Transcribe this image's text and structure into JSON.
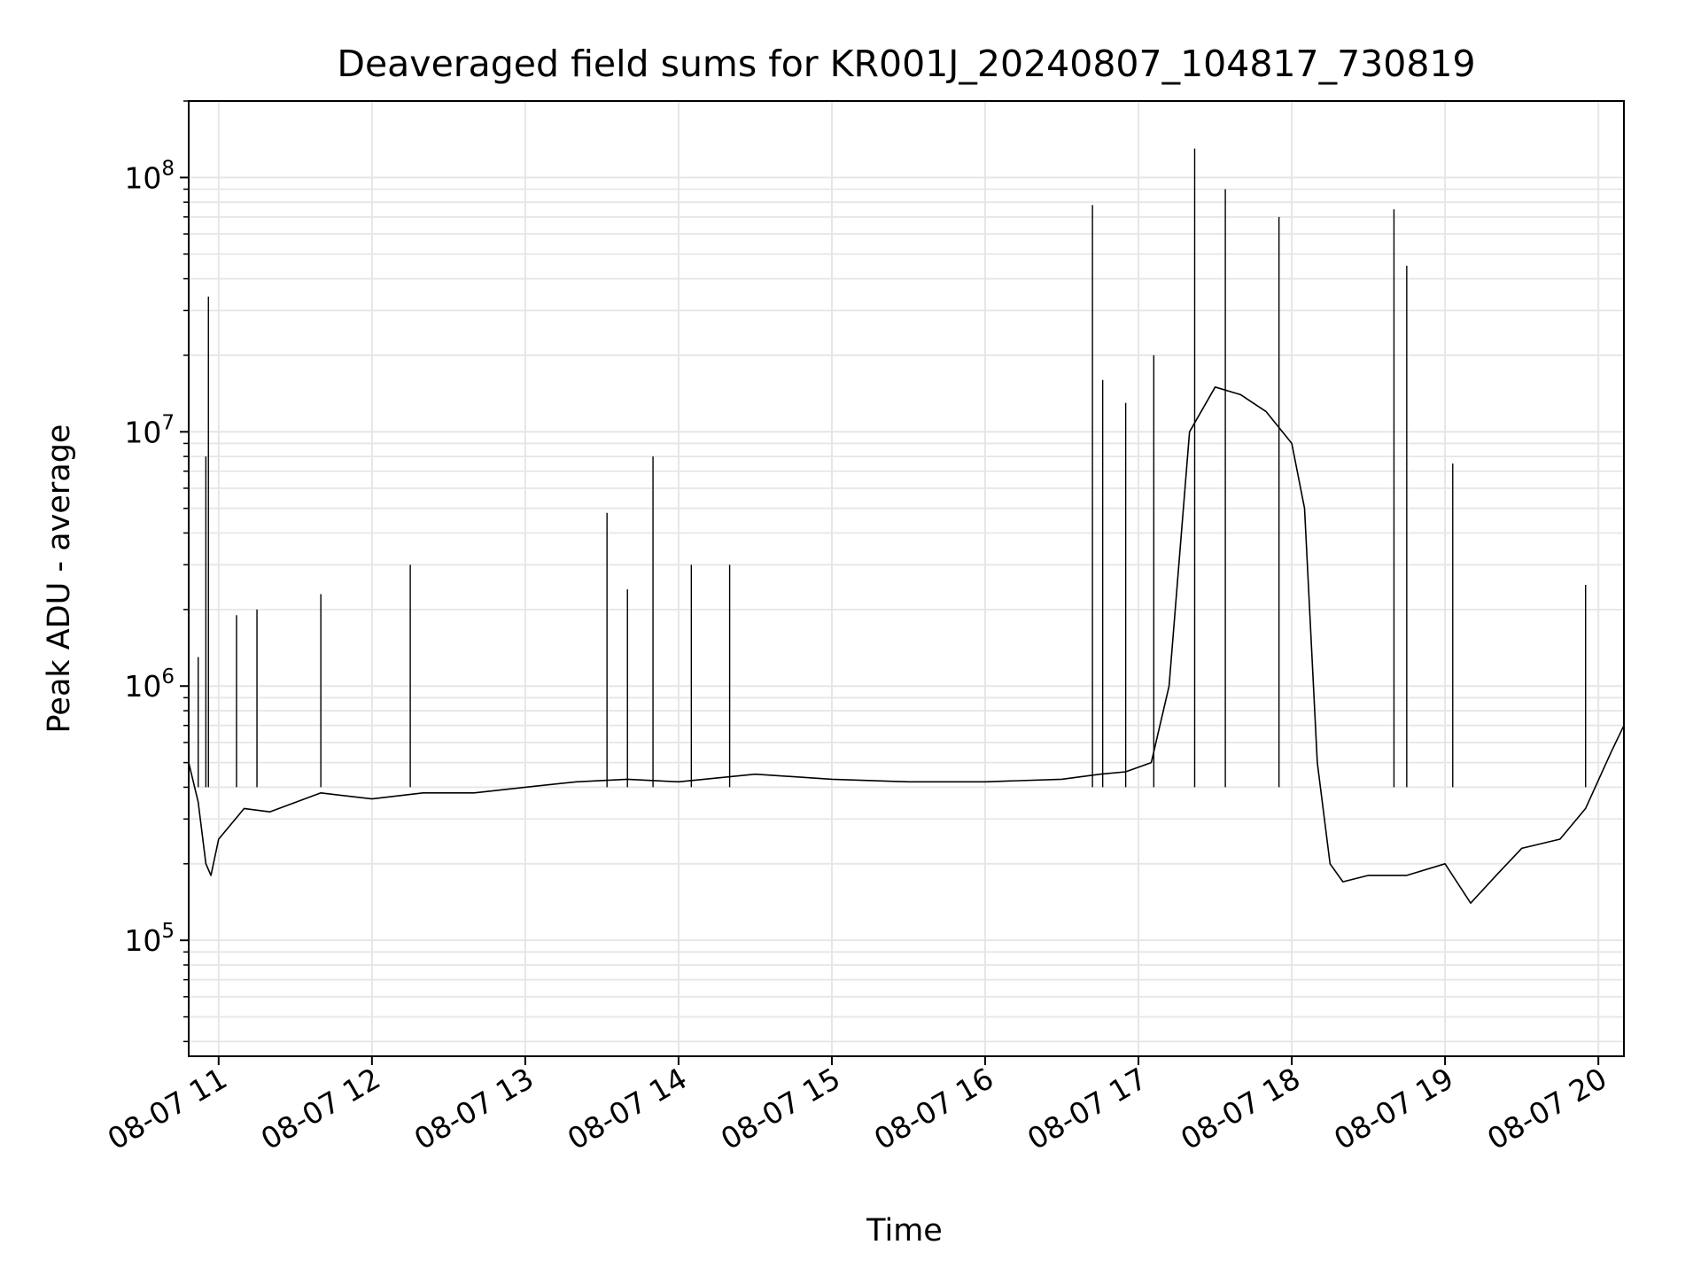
{
  "chart_data": {
    "type": "line",
    "title": "Deaveraged field sums for KR001J_20240807_104817_730819",
    "xlabel": "Time",
    "ylabel": "Peak ADU - average",
    "x_scale": "time",
    "y_scale": "log",
    "xlim": [
      "2024-08-07T10:48:17",
      "2024-08-07T20:10:00"
    ],
    "ylim": [
      35000,
      200000000
    ],
    "x_tick_labels": [
      "08-07 11",
      "08-07 12",
      "08-07 13",
      "08-07 14",
      "08-07 15",
      "08-07 16",
      "08-07 17",
      "08-07 18",
      "08-07 19",
      "08-07 20"
    ],
    "x_tick_times": [
      "2024-08-07T11:00:00",
      "2024-08-07T12:00:00",
      "2024-08-07T13:00:00",
      "2024-08-07T14:00:00",
      "2024-08-07T15:00:00",
      "2024-08-07T16:00:00",
      "2024-08-07T17:00:00",
      "2024-08-07T18:00:00",
      "2024-08-07T19:00:00",
      "2024-08-07T20:00:00"
    ],
    "y_ticks": [
      {
        "value": 100000,
        "base": "10",
        "exp": "5"
      },
      {
        "value": 1000000,
        "base": "10",
        "exp": "6"
      },
      {
        "value": 10000000,
        "base": "10",
        "exp": "7"
      },
      {
        "value": 100000000,
        "base": "10",
        "exp": "8"
      }
    ],
    "grid": true,
    "line_color": "#000000",
    "grid_color": "#e6e6e6",
    "series": [
      {
        "x": [
          "2024-08-07T10:48:17",
          "2024-08-07T10:52:00",
          "2024-08-07T10:55:00",
          "2024-08-07T10:57:00",
          "2024-08-07T11:00:00",
          "2024-08-07T11:10:00",
          "2024-08-07T11:20:00",
          "2024-08-07T11:40:00",
          "2024-08-07T12:00:00",
          "2024-08-07T12:20:00",
          "2024-08-07T12:40:00",
          "2024-08-07T13:00:00",
          "2024-08-07T13:20:00",
          "2024-08-07T13:40:00",
          "2024-08-07T14:00:00",
          "2024-08-07T14:30:00",
          "2024-08-07T15:00:00",
          "2024-08-07T15:30:00",
          "2024-08-07T16:00:00",
          "2024-08-07T16:30:00",
          "2024-08-07T16:45:00",
          "2024-08-07T16:55:00",
          "2024-08-07T17:05:00",
          "2024-08-07T17:12:00",
          "2024-08-07T17:20:00",
          "2024-08-07T17:30:00",
          "2024-08-07T17:40:00",
          "2024-08-07T17:50:00",
          "2024-08-07T18:00:00",
          "2024-08-07T18:05:00",
          "2024-08-07T18:10:00",
          "2024-08-07T18:15:00",
          "2024-08-07T18:20:00",
          "2024-08-07T18:30:00",
          "2024-08-07T18:45:00",
          "2024-08-07T19:00:00",
          "2024-08-07T19:10:00",
          "2024-08-07T19:20:00",
          "2024-08-07T19:30:00",
          "2024-08-07T19:45:00",
          "2024-08-07T19:55:00",
          "2024-08-07T20:05:00",
          "2024-08-07T20:10:00"
        ],
        "y": [
          500000,
          350000,
          200000,
          180000,
          250000,
          330000,
          320000,
          380000,
          360000,
          380000,
          380000,
          400000,
          420000,
          430000,
          420000,
          450000,
          430000,
          420000,
          420000,
          430000,
          450000,
          460000,
          500000,
          1000000,
          10000000,
          15000000,
          14000000,
          12000000,
          9000000,
          5000000,
          500000,
          200000,
          170000,
          180000,
          180000,
          200000,
          140000,
          180000,
          230000,
          250000,
          330000,
          550000,
          700000
        ]
      }
    ],
    "spikes": [
      {
        "x": "2024-08-07T10:52:00",
        "y": 1300000
      },
      {
        "x": "2024-08-07T10:55:00",
        "y": 8000000
      },
      {
        "x": "2024-08-07T10:56:00",
        "y": 34000000
      },
      {
        "x": "2024-08-07T11:07:00",
        "y": 1900000
      },
      {
        "x": "2024-08-07T11:15:00",
        "y": 2000000
      },
      {
        "x": "2024-08-07T11:40:00",
        "y": 2300000
      },
      {
        "x": "2024-08-07T12:15:00",
        "y": 3000000
      },
      {
        "x": "2024-08-07T13:32:00",
        "y": 4800000
      },
      {
        "x": "2024-08-07T13:40:00",
        "y": 2400000
      },
      {
        "x": "2024-08-07T13:50:00",
        "y": 8000000
      },
      {
        "x": "2024-08-07T14:05:00",
        "y": 3000000
      },
      {
        "x": "2024-08-07T14:20:00",
        "y": 3000000
      },
      {
        "x": "2024-08-07T16:42:00",
        "y": 78000000
      },
      {
        "x": "2024-08-07T16:46:00",
        "y": 16000000
      },
      {
        "x": "2024-08-07T16:55:00",
        "y": 13000000
      },
      {
        "x": "2024-08-07T17:06:00",
        "y": 20000000
      },
      {
        "x": "2024-08-07T17:22:00",
        "y": 130000000
      },
      {
        "x": "2024-08-07T17:34:00",
        "y": 90000000
      },
      {
        "x": "2024-08-07T17:55:00",
        "y": 70000000
      },
      {
        "x": "2024-08-07T18:40:00",
        "y": 75000000
      },
      {
        "x": "2024-08-07T18:45:00",
        "y": 45000000
      },
      {
        "x": "2024-08-07T19:03:00",
        "y": 7500000
      },
      {
        "x": "2024-08-07T19:55:00",
        "y": 2500000
      }
    ]
  }
}
